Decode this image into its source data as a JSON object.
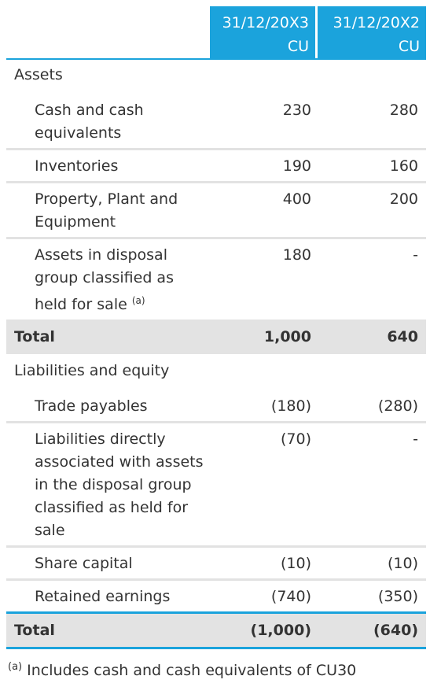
{
  "header": {
    "col1_line1": "31/12/20X3",
    "col1_line2": "CU",
    "col2_line1": "31/12/20X2",
    "col2_line2": "CU"
  },
  "assets": {
    "title": "Assets",
    "rows": [
      {
        "label_lines": [
          "Cash and cash",
          "equivalents"
        ],
        "v1": "230",
        "v2": "280"
      },
      {
        "label_lines": [
          "Inventories"
        ],
        "v1": "190",
        "v2": "160"
      },
      {
        "label_lines": [
          "Property, Plant and",
          "Equipment"
        ],
        "v1": "400",
        "v2": "200"
      },
      {
        "label_lines": [
          "Assets in disposal",
          "group classified as",
          "held for sale"
        ],
        "sup": "(a)",
        "v1": "180",
        "v2": "-"
      }
    ],
    "total": {
      "label": "Total",
      "v1": "1,000",
      "v2": "640"
    }
  },
  "liabilities": {
    "title": "Liabilities and equity",
    "rows": [
      {
        "label_lines": [
          "Trade payables"
        ],
        "v1": "(180)",
        "v2": "(280)"
      },
      {
        "label_lines": [
          "Liabilities directly",
          "associated with assets",
          "in the disposal group",
          "classified as held for",
          "sale"
        ],
        "v1": "(70)",
        "v2": "-"
      },
      {
        "label_lines": [
          "Share capital"
        ],
        "v1": "(10)",
        "v2": "(10)"
      },
      {
        "label_lines": [
          "Retained earnings"
        ],
        "v1": "(740)",
        "v2": "(350)"
      }
    ],
    "total": {
      "label": "Total",
      "v1": "(1,000)",
      "v2": "(640)"
    }
  },
  "footnote": {
    "marker": "(a)",
    "text": " Includes cash and cash equivalents of CU30"
  },
  "colors": {
    "accent": "#1ba3dc",
    "total_bg": "#e3e3e3",
    "divider": "#e2e2e2"
  }
}
